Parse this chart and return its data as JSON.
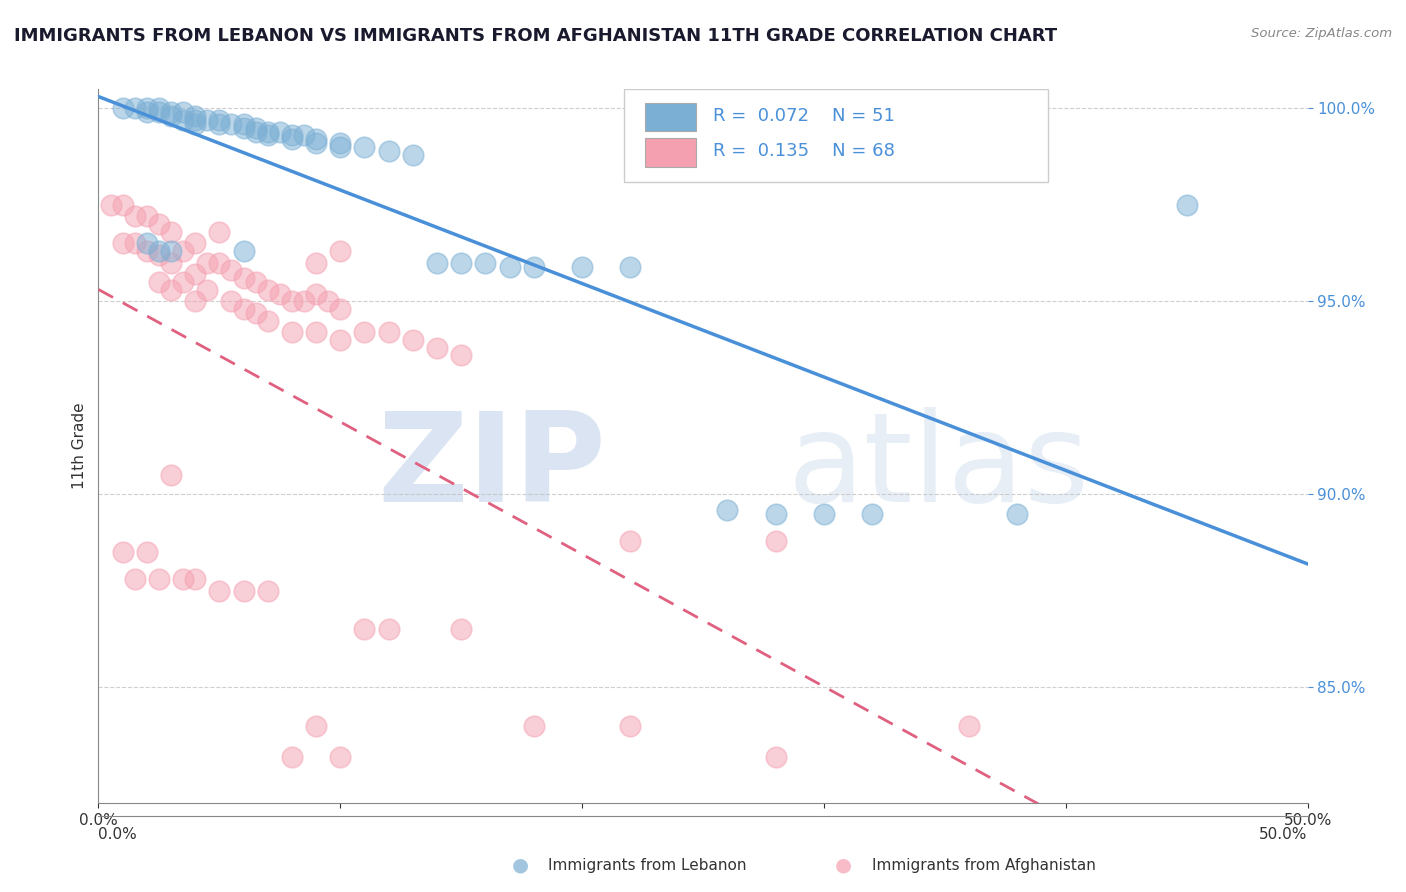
{
  "title": "IMMIGRANTS FROM LEBANON VS IMMIGRANTS FROM AFGHANISTAN 11TH GRADE CORRELATION CHART",
  "source": "Source: ZipAtlas.com",
  "ylabel": "11th Grade",
  "xlim": [
    0.0,
    0.5
  ],
  "ylim": [
    0.82,
    1.005
  ],
  "yticks": [
    0.85,
    0.9,
    0.95,
    1.0
  ],
  "yticklabels": [
    "85.0%",
    "90.0%",
    "95.0%",
    "100.0%"
  ],
  "lebanon_color": "#7BAFD4",
  "afghanistan_color": "#F4A0B0",
  "lebanon_line_color": "#4A90D9",
  "afghanistan_line_color": "#E06080",
  "watermark_bold": "ZIP",
  "watermark_light": "atlas",
  "lebanon_scatter_x": [
    0.01,
    0.015,
    0.02,
    0.02,
    0.025,
    0.025,
    0.03,
    0.03,
    0.035,
    0.035,
    0.04,
    0.04,
    0.04,
    0.045,
    0.05,
    0.05,
    0.055,
    0.06,
    0.06,
    0.065,
    0.065,
    0.07,
    0.07,
    0.075,
    0.08,
    0.08,
    0.085,
    0.09,
    0.09,
    0.1,
    0.1,
    0.11,
    0.12,
    0.13,
    0.14,
    0.15,
    0.16,
    0.17,
    0.18,
    0.2,
    0.22,
    0.26,
    0.3,
    0.32,
    0.38,
    0.45,
    0.02,
    0.025,
    0.03,
    0.06,
    0.28
  ],
  "lebanon_scatter_y": [
    1.0,
    1.0,
    1.0,
    0.999,
    1.0,
    0.999,
    0.999,
    0.998,
    0.999,
    0.997,
    0.998,
    0.997,
    0.996,
    0.997,
    0.997,
    0.996,
    0.996,
    0.996,
    0.995,
    0.995,
    0.994,
    0.994,
    0.993,
    0.994,
    0.993,
    0.992,
    0.993,
    0.992,
    0.991,
    0.991,
    0.99,
    0.99,
    0.989,
    0.988,
    0.96,
    0.96,
    0.96,
    0.959,
    0.959,
    0.959,
    0.959,
    0.896,
    0.895,
    0.895,
    0.895,
    0.975,
    0.965,
    0.963,
    0.963,
    0.963,
    0.895
  ],
  "afghanistan_scatter_x": [
    0.005,
    0.01,
    0.01,
    0.015,
    0.015,
    0.02,
    0.02,
    0.025,
    0.025,
    0.025,
    0.03,
    0.03,
    0.03,
    0.035,
    0.035,
    0.04,
    0.04,
    0.04,
    0.045,
    0.045,
    0.05,
    0.05,
    0.055,
    0.055,
    0.06,
    0.06,
    0.065,
    0.065,
    0.07,
    0.07,
    0.075,
    0.08,
    0.08,
    0.085,
    0.09,
    0.09,
    0.09,
    0.095,
    0.1,
    0.1,
    0.1,
    0.11,
    0.12,
    0.13,
    0.14,
    0.15,
    0.01,
    0.015,
    0.02,
    0.025,
    0.03,
    0.035,
    0.04,
    0.05,
    0.06,
    0.07,
    0.08,
    0.09,
    0.1,
    0.11,
    0.12,
    0.15,
    0.18,
    0.22,
    0.28,
    0.36,
    0.22,
    0.28
  ],
  "afghanistan_scatter_y": [
    0.975,
    0.975,
    0.965,
    0.972,
    0.965,
    0.972,
    0.963,
    0.97,
    0.962,
    0.955,
    0.968,
    0.96,
    0.953,
    0.963,
    0.955,
    0.965,
    0.957,
    0.95,
    0.96,
    0.953,
    0.968,
    0.96,
    0.958,
    0.95,
    0.956,
    0.948,
    0.955,
    0.947,
    0.953,
    0.945,
    0.952,
    0.95,
    0.942,
    0.95,
    0.96,
    0.952,
    0.942,
    0.95,
    0.948,
    0.94,
    0.963,
    0.942,
    0.942,
    0.94,
    0.938,
    0.936,
    0.885,
    0.878,
    0.885,
    0.878,
    0.905,
    0.878,
    0.878,
    0.875,
    0.875,
    0.875,
    0.832,
    0.84,
    0.832,
    0.865,
    0.865,
    0.865,
    0.84,
    0.84,
    0.832,
    0.84,
    0.888,
    0.888
  ]
}
